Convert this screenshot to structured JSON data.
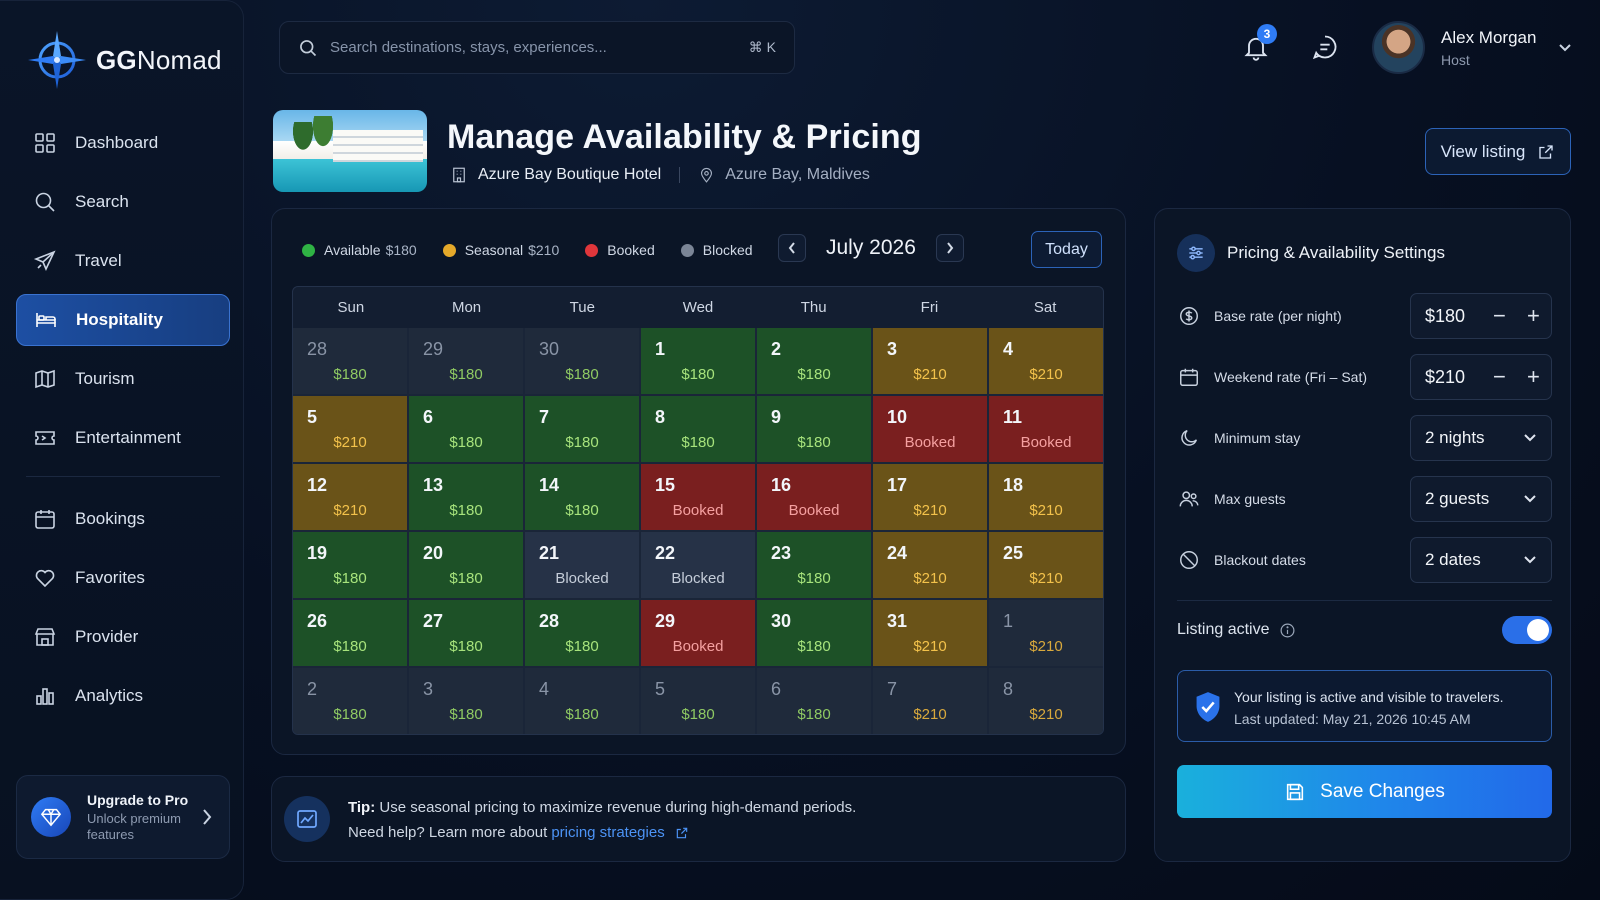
{
  "app": {
    "name_bold": "GG",
    "name_rest": "Nomad"
  },
  "sidebar": {
    "items": [
      {
        "label": "Dashboard",
        "icon": "dashboard-icon"
      },
      {
        "label": "Search",
        "icon": "search-icon"
      },
      {
        "label": "Travel",
        "icon": "plane-icon"
      },
      {
        "label": "Hospitality",
        "icon": "bed-icon",
        "active": true
      },
      {
        "label": "Tourism",
        "icon": "map-icon"
      },
      {
        "label": "Entertainment",
        "icon": "ticket-icon"
      }
    ],
    "items2": [
      {
        "label": "Bookings",
        "icon": "calendar-icon"
      },
      {
        "label": "Favorites",
        "icon": "heart-icon"
      },
      {
        "label": "Provider",
        "icon": "store-icon"
      },
      {
        "label": "Analytics",
        "icon": "bar-chart-icon"
      }
    ],
    "upgrade": {
      "title": "Upgrade to Pro",
      "subtitle": "Unlock premium features"
    }
  },
  "topbar": {
    "search_placeholder": "Search destinations, stays, experiences...",
    "shortcut": "⌘ K",
    "notifications_count": "3",
    "user": {
      "name": "Alex Morgan",
      "role": "Host"
    }
  },
  "header": {
    "title": "Manage Availability & Pricing",
    "hotel": "Azure Bay Boutique Hotel",
    "location": "Azure Bay, Maldives",
    "view_listing": "View listing"
  },
  "calendar": {
    "legend": [
      {
        "label": "Available",
        "price": "$180",
        "color": "#2fb344"
      },
      {
        "label": "Seasonal",
        "price": "$210",
        "color": "#e5a92a"
      },
      {
        "label": "Booked",
        "price": "",
        "color": "#e0363b"
      },
      {
        "label": "Blocked",
        "price": "",
        "color": "#7b8596"
      }
    ],
    "month": "July 2026",
    "today": "Today",
    "weekdays": [
      "Sun",
      "Mon",
      "Tue",
      "Wed",
      "Thu",
      "Fri",
      "Sat"
    ],
    "days": [
      {
        "d": "28",
        "t": "$180",
        "s": "out-available"
      },
      {
        "d": "29",
        "t": "$180",
        "s": "out-available"
      },
      {
        "d": "30",
        "t": "$180",
        "s": "out-available"
      },
      {
        "d": "1",
        "t": "$180",
        "s": "available"
      },
      {
        "d": "2",
        "t": "$180",
        "s": "available"
      },
      {
        "d": "3",
        "t": "$210",
        "s": "seasonal"
      },
      {
        "d": "4",
        "t": "$210",
        "s": "seasonal"
      },
      {
        "d": "5",
        "t": "$210",
        "s": "seasonal"
      },
      {
        "d": "6",
        "t": "$180",
        "s": "available"
      },
      {
        "d": "7",
        "t": "$180",
        "s": "available"
      },
      {
        "d": "8",
        "t": "$180",
        "s": "available"
      },
      {
        "d": "9",
        "t": "$180",
        "s": "available"
      },
      {
        "d": "10",
        "t": "Booked",
        "s": "booked"
      },
      {
        "d": "11",
        "t": "Booked",
        "s": "booked"
      },
      {
        "d": "12",
        "t": "$210",
        "s": "seasonal"
      },
      {
        "d": "13",
        "t": "$180",
        "s": "available"
      },
      {
        "d": "14",
        "t": "$180",
        "s": "available"
      },
      {
        "d": "15",
        "t": "Booked",
        "s": "booked"
      },
      {
        "d": "16",
        "t": "Booked",
        "s": "booked"
      },
      {
        "d": "17",
        "t": "$210",
        "s": "seasonal"
      },
      {
        "d": "18",
        "t": "$210",
        "s": "seasonal"
      },
      {
        "d": "19",
        "t": "$180",
        "s": "available"
      },
      {
        "d": "20",
        "t": "$180",
        "s": "available"
      },
      {
        "d": "21",
        "t": "Blocked",
        "s": "blocked"
      },
      {
        "d": "22",
        "t": "Blocked",
        "s": "blocked"
      },
      {
        "d": "23",
        "t": "$180",
        "s": "available"
      },
      {
        "d": "24",
        "t": "$210",
        "s": "seasonal"
      },
      {
        "d": "25",
        "t": "$210",
        "s": "seasonal"
      },
      {
        "d": "26",
        "t": "$180",
        "s": "available"
      },
      {
        "d": "27",
        "t": "$180",
        "s": "available"
      },
      {
        "d": "28",
        "t": "$180",
        "s": "available"
      },
      {
        "d": "29",
        "t": "Booked",
        "s": "booked"
      },
      {
        "d": "30",
        "t": "$180",
        "s": "available"
      },
      {
        "d": "31",
        "t": "$210",
        "s": "seasonal"
      },
      {
        "d": "1",
        "t": "$210",
        "s": "out-seasonal"
      },
      {
        "d": "2",
        "t": "$180",
        "s": "out-available"
      },
      {
        "d": "3",
        "t": "$180",
        "s": "out-available"
      },
      {
        "d": "4",
        "t": "$180",
        "s": "out-available"
      },
      {
        "d": "5",
        "t": "$180",
        "s": "out-available"
      },
      {
        "d": "6",
        "t": "$180",
        "s": "out-available"
      },
      {
        "d": "7",
        "t": "$210",
        "s": "out-seasonal"
      },
      {
        "d": "8",
        "t": "$210",
        "s": "out-seasonal"
      }
    ]
  },
  "tip": {
    "bold": "Tip:",
    "text": " Use seasonal pricing to maximize revenue during high-demand periods.",
    "help": "Need help? Learn more about",
    "link": "pricing strategies"
  },
  "settings": {
    "title": "Pricing & Availability Settings",
    "rows": [
      {
        "label": "Base rate (per night)",
        "value": "$180",
        "kind": "stepper",
        "icon": "dollar-icon"
      },
      {
        "label": "Weekend rate (Fri – Sat)",
        "value": "$210",
        "kind": "stepper",
        "icon": "calendar-icon"
      },
      {
        "label": "Minimum stay",
        "value": "2 nights",
        "kind": "select",
        "icon": "moon-icon"
      },
      {
        "label": "Max guests",
        "value": "2 guests",
        "kind": "select",
        "icon": "users-icon"
      },
      {
        "label": "Blackout dates",
        "value": "2 dates",
        "kind": "select",
        "icon": "ban-icon"
      }
    ],
    "listing_active_label": "Listing active",
    "status_line1": "Your listing is active and visible to travelers.",
    "status_line2": "Last updated: May 21, 2026 10:45 AM",
    "save": "Save Changes"
  }
}
